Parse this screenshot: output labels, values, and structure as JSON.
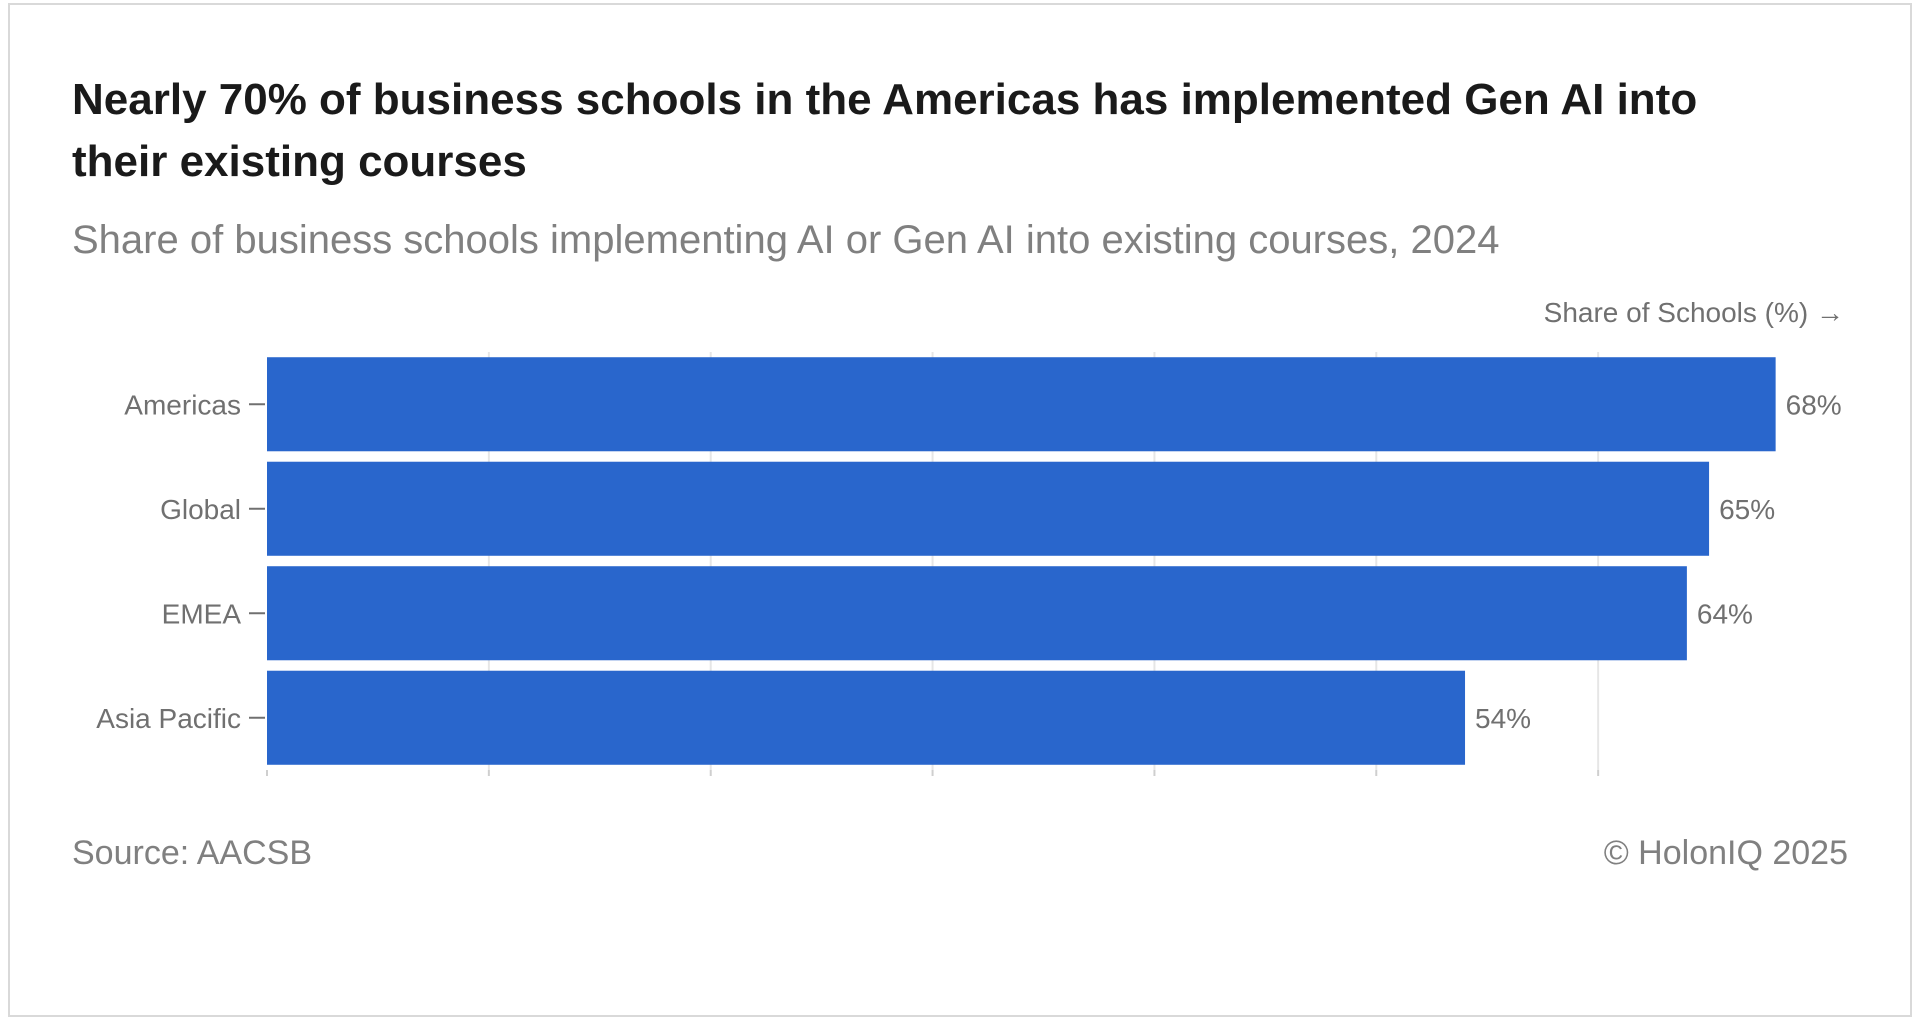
{
  "title": "Nearly 70% of business schools in the Americas has implemented Gen AI into their existing courses",
  "subtitle": "Share of business schools implementing AI or Gen AI into existing courses, 2024",
  "source": "Source: AACSB",
  "copyright": "© HolonIQ 2025",
  "colors": {
    "bar": "#2966cc",
    "grid": "#e6e6e6",
    "text_muted": "#808080",
    "title": "#1a1a1a"
  },
  "chart_data": {
    "type": "bar",
    "orientation": "horizontal",
    "categories": [
      "Americas",
      "Global",
      "EMEA",
      "Asia Pacific"
    ],
    "values": [
      68,
      65,
      64,
      54
    ],
    "value_labels": [
      "68%",
      "65%",
      "64%",
      "54%"
    ],
    "xlabel": "Share of Schools (%) →",
    "ylabel": "",
    "xlim": [
      0,
      70
    ],
    "grid": true,
    "tick_labels_x_visible": false
  }
}
